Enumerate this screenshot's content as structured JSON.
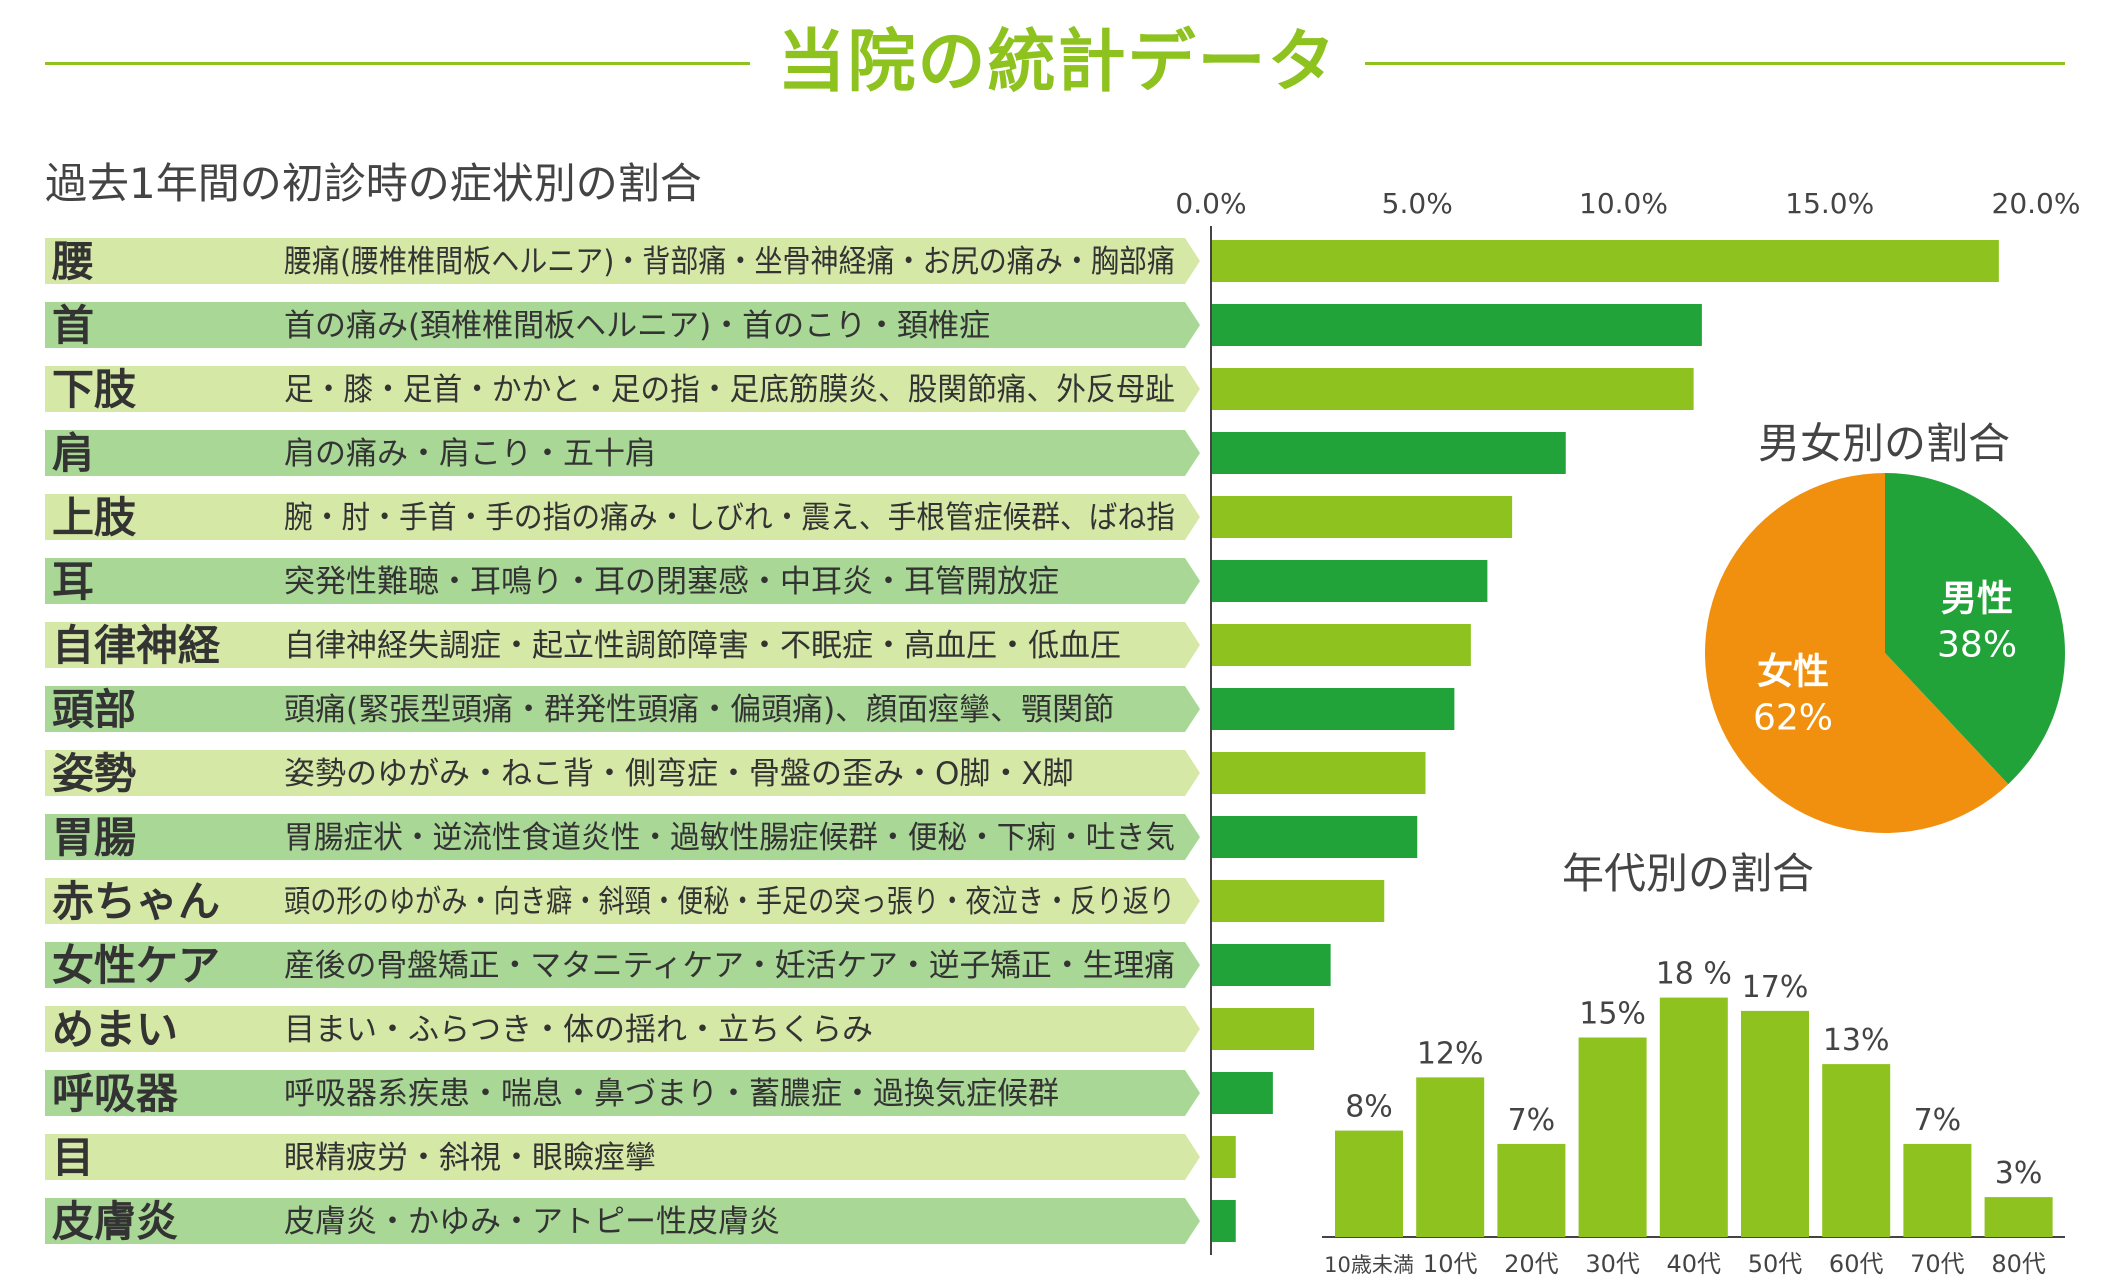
{
  "header": {
    "title": "当院の統計データ"
  },
  "sections": {
    "symptoms": "過去1年間の初診時の症状別の割合",
    "gender": "男女別の割合",
    "age": "年代別の割合"
  },
  "colors": {
    "accent_green": "#8dc21f",
    "dark_green": "#22a33a",
    "orange": "#f0900e",
    "label_light": "#d6e8a5",
    "label_dark": "#a9d795"
  },
  "chart_data": [
    {
      "type": "bar",
      "orientation": "horizontal",
      "title": "過去1年間の初診時の症状別の割合",
      "xlim": [
        0,
        20
      ],
      "ticks": [
        "0.0%",
        "5.0%",
        "10.0%",
        "15.0%",
        "20.0%"
      ],
      "categories": [
        {
          "name": "腰",
          "detail": "腰痛(腰椎椎間板ヘルニア)・背部痛・坐骨神経痛・お尻の痛み・胸部痛",
          "value": 19.1
        },
        {
          "name": "首",
          "detail": "首の痛み(頚椎椎間板ヘルニア)・首のこり・頚椎症",
          "value": 11.9
        },
        {
          "name": "下肢",
          "detail": "足・膝・足首・かかと・足の指・足底筋膜炎、股関節痛、外反母趾",
          "value": 11.7
        },
        {
          "name": "肩",
          "detail": "肩の痛み・肩こり・五十肩",
          "value": 8.6
        },
        {
          "name": "上肢",
          "detail": "腕・肘・手首・手の指の痛み・しびれ・震え、手根管症候群、ばね指",
          "value": 7.3
        },
        {
          "name": "耳",
          "detail": "突発性難聴・耳鳴り・耳の閉塞感・中耳炎・耳管開放症",
          "value": 6.7
        },
        {
          "name": "自律神経",
          "detail": "自律神経失調症・起立性調節障害・不眠症・高血圧・低血圧",
          "value": 6.3
        },
        {
          "name": "頭部",
          "detail": "頭痛(緊張型頭痛・群発性頭痛・偏頭痛)、顔面痙攣、顎関節",
          "value": 5.9
        },
        {
          "name": "姿勢",
          "detail": "姿勢のゆがみ・ねこ背・側弯症・骨盤の歪み・O脚・X脚",
          "value": 5.2
        },
        {
          "name": "胃腸",
          "detail": "胃腸症状・逆流性食道炎性・過敏性腸症候群・便秘・下痢・吐き気",
          "value": 5.0
        },
        {
          "name": "赤ちゃん",
          "detail": "頭の形のゆがみ・向き癖・斜頸・便秘・手足の突っ張り・夜泣き・反り返り",
          "value": 4.2
        },
        {
          "name": "女性ケア",
          "detail": "産後の骨盤矯正・マタニティケア・妊活ケア・逆子矯正・生理痛",
          "value": 2.9
        },
        {
          "name": "めまい",
          "detail": "目まい・ふらつき・体の揺れ・立ちくらみ",
          "value": 2.5
        },
        {
          "name": "呼吸器",
          "detail": "呼吸器系疾患・喘息・鼻づまり・蓄膿症・過換気症候群",
          "value": 1.5
        },
        {
          "name": "目",
          "detail": "眼精疲労・斜視・眼瞼痙攣",
          "value": 0.6
        },
        {
          "name": "皮膚炎",
          "detail": "皮膚炎・かゆみ・アトピー性皮膚炎",
          "value": 0.6
        }
      ]
    },
    {
      "type": "pie",
      "title": "男女別の割合",
      "slices": [
        {
          "label": "男性",
          "value": 38,
          "text": "38%",
          "color": "#22a33a"
        },
        {
          "label": "女性",
          "value": 62,
          "text": "62%",
          "color": "#f0900e"
        }
      ]
    },
    {
      "type": "bar",
      "title": "年代別の割合",
      "categories": [
        "10歳未満",
        "10代",
        "20代",
        "30代",
        "40代",
        "50代",
        "60代",
        "70代",
        "80代"
      ],
      "values": [
        8,
        12,
        7,
        15,
        18,
        17,
        13,
        7,
        3
      ],
      "labels": [
        "8%",
        "12%",
        "7%",
        "15%",
        "18 %",
        "17%",
        "13%",
        "7%",
        "3%"
      ]
    }
  ]
}
